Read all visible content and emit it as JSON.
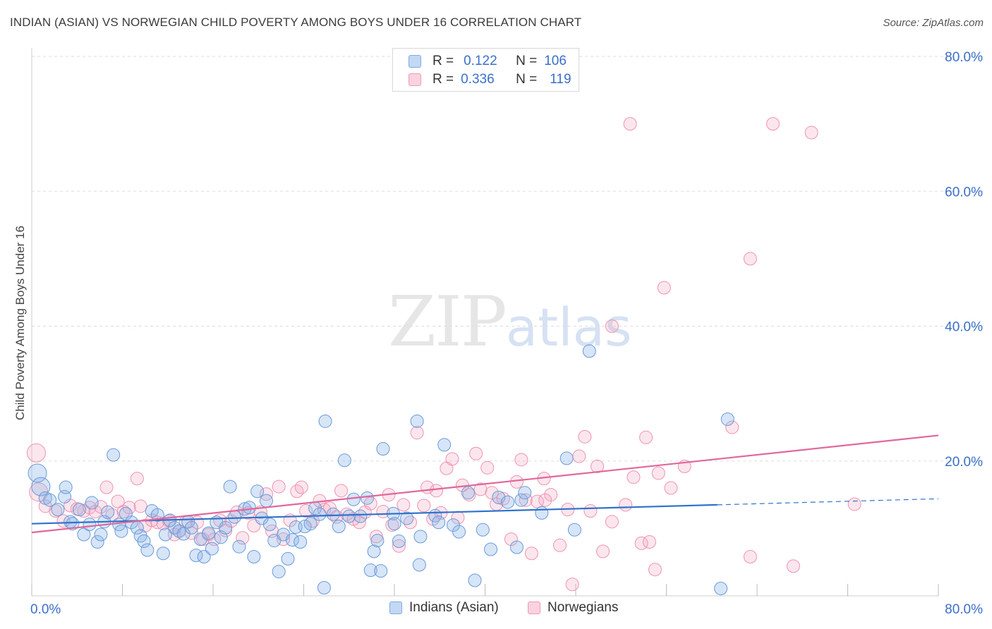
{
  "title": "INDIAN (ASIAN) VS NORWEGIAN CHILD POVERTY AMONG BOYS UNDER 16 CORRELATION CHART",
  "source": "Source: ZipAtlas.com",
  "watermark": {
    "zip": "ZIP",
    "atlas": "atlas"
  },
  "legend_top": {
    "rows": [
      {
        "r_label": "R =",
        "r_value": "0.122",
        "n_label": "N =",
        "n_value": "106",
        "color": "#a9c7ef"
      },
      {
        "r_label": "R =",
        "r_value": "0.336",
        "n_label": "N =",
        "n_value": "119",
        "color": "#f7b8cb"
      }
    ]
  },
  "legend_bottom": [
    "Indians (Asian)",
    "Norwegians"
  ],
  "colors": {
    "blue_fill": "rgba(137,180,232,0.35)",
    "blue_stroke": "#6a9ad8",
    "blue_line": "#2f72cc",
    "pink_fill": "rgba(244,165,190,0.28)",
    "pink_stroke": "#ee93b0",
    "pink_line": "#e1679a",
    "tick_label": "#3b6fc9",
    "grid": "#dddddd"
  },
  "chart_data": {
    "type": "scatter",
    "title": "INDIAN (ASIAN) VS NORWEGIAN CHILD POVERTY AMONG BOYS UNDER 16 CORRELATION CHART",
    "xlabel": "",
    "ylabel": "Child Poverty Among Boys Under 16",
    "xlim": [
      0,
      80
    ],
    "ylim": [
      0,
      80
    ],
    "x_tick_labels": [
      "0.0%",
      "80.0%"
    ],
    "y_tick_labels": [
      "20.0%",
      "40.0%",
      "60.0%",
      "80.0%"
    ],
    "y_ticks": [
      20,
      40,
      60,
      80
    ],
    "grid": true,
    "legend_position": "top-center",
    "series": [
      {
        "name": "Indians (Asian)",
        "R": 0.122,
        "N": 106,
        "trend": {
          "x_start": 0,
          "y_start": 10.7,
          "x_solid_end": 60.5,
          "y_solid_end": 13.5,
          "x_end": 80,
          "y_end": 14.4
        },
        "points": [
          [
            0.5,
            18.2
          ],
          [
            0.8,
            16.2
          ],
          [
            1.2,
            14.5
          ],
          [
            1.6,
            14.2
          ],
          [
            2.3,
            12.8
          ],
          [
            2.9,
            14.7
          ],
          [
            3.0,
            16.1
          ],
          [
            3.4,
            11.0
          ],
          [
            3.6,
            10.7
          ],
          [
            4.2,
            12.8
          ],
          [
            4.6,
            9.1
          ],
          [
            5.1,
            10.6
          ],
          [
            5.3,
            13.8
          ],
          [
            5.8,
            8.0
          ],
          [
            6.1,
            9.1
          ],
          [
            6.4,
            11.0
          ],
          [
            6.7,
            12.4
          ],
          [
            7.2,
            20.9
          ],
          [
            7.7,
            10.6
          ],
          [
            7.9,
            9.6
          ],
          [
            8.3,
            12.2
          ],
          [
            8.8,
            10.9
          ],
          [
            9.3,
            10.1
          ],
          [
            9.6,
            8.9
          ],
          [
            9.9,
            8.1
          ],
          [
            10.2,
            6.8
          ],
          [
            10.6,
            12.6
          ],
          [
            11.1,
            12.0
          ],
          [
            11.6,
            6.3
          ],
          [
            11.8,
            9.1
          ],
          [
            12.2,
            11.2
          ],
          [
            12.6,
            10.1
          ],
          [
            13.0,
            9.6
          ],
          [
            13.4,
            9.2
          ],
          [
            13.8,
            11.0
          ],
          [
            14.1,
            10.1
          ],
          [
            14.5,
            6.0
          ],
          [
            14.9,
            8.4
          ],
          [
            15.2,
            5.8
          ],
          [
            15.6,
            9.3
          ],
          [
            15.9,
            7.0
          ],
          [
            16.3,
            10.9
          ],
          [
            16.7,
            8.7
          ],
          [
            17.1,
            10.1
          ],
          [
            17.5,
            16.2
          ],
          [
            17.9,
            11.7
          ],
          [
            18.3,
            7.3
          ],
          [
            18.8,
            12.9
          ],
          [
            19.2,
            13.1
          ],
          [
            19.6,
            5.8
          ],
          [
            19.9,
            15.5
          ],
          [
            20.3,
            11.5
          ],
          [
            20.7,
            14.1
          ],
          [
            21.0,
            10.6
          ],
          [
            21.4,
            8.2
          ],
          [
            21.8,
            3.6
          ],
          [
            22.2,
            9.1
          ],
          [
            22.6,
            5.5
          ],
          [
            23.0,
            8.3
          ],
          [
            23.3,
            10.2
          ],
          [
            23.7,
            8.0
          ],
          [
            24.1,
            10.3
          ],
          [
            24.6,
            10.7
          ],
          [
            25.0,
            13.0
          ],
          [
            25.4,
            12.1
          ],
          [
            25.8,
            1.2
          ],
          [
            25.9,
            25.9
          ],
          [
            26.6,
            12.1
          ],
          [
            27.1,
            10.3
          ],
          [
            27.6,
            20.1
          ],
          [
            28.0,
            11.8
          ],
          [
            28.4,
            14.3
          ],
          [
            29.0,
            11.8
          ],
          [
            29.6,
            14.5
          ],
          [
            29.9,
            3.8
          ],
          [
            30.2,
            6.6
          ],
          [
            30.5,
            8.2
          ],
          [
            30.8,
            3.7
          ],
          [
            31.0,
            21.8
          ],
          [
            31.9,
            12.2
          ],
          [
            32.0,
            10.7
          ],
          [
            32.4,
            8.1
          ],
          [
            33.1,
            11.5
          ],
          [
            34.0,
            25.9
          ],
          [
            34.3,
            8.8
          ],
          [
            34.2,
            4.6
          ],
          [
            35.6,
            11.9
          ],
          [
            35.9,
            10.9
          ],
          [
            36.4,
            22.4
          ],
          [
            37.2,
            10.5
          ],
          [
            37.7,
            9.5
          ],
          [
            38.5,
            15.3
          ],
          [
            39.1,
            2.3
          ],
          [
            39.8,
            9.8
          ],
          [
            40.5,
            6.9
          ],
          [
            41.2,
            14.6
          ],
          [
            42.0,
            13.9
          ],
          [
            42.8,
            7.2
          ],
          [
            43.2,
            14.2
          ],
          [
            43.5,
            15.3
          ],
          [
            45.0,
            12.3
          ],
          [
            47.2,
            20.4
          ],
          [
            47.9,
            9.8
          ],
          [
            49.2,
            36.3
          ],
          [
            61.4,
            26.2
          ],
          [
            60.8,
            1.1
          ]
        ]
      },
      {
        "name": "Norwegians",
        "R": 0.336,
        "N": 119,
        "trend": {
          "x_start": 0,
          "y_start": 9.4,
          "x_end": 80,
          "y_end": 23.8
        },
        "points": [
          [
            0.4,
            21.2
          ],
          [
            0.6,
            15.4
          ],
          [
            1.2,
            13.3
          ],
          [
            2.1,
            12.6
          ],
          [
            2.8,
            11.1
          ],
          [
            3.4,
            13.4
          ],
          [
            4.0,
            12.9
          ],
          [
            4.6,
            12.6
          ],
          [
            5.1,
            13.1
          ],
          [
            5.6,
            12.5
          ],
          [
            6.1,
            13.2
          ],
          [
            6.6,
            16.1
          ],
          [
            7.1,
            12.0
          ],
          [
            7.6,
            14.0
          ],
          [
            8.1,
            12.5
          ],
          [
            8.6,
            13.1
          ],
          [
            9.3,
            17.4
          ],
          [
            9.6,
            13.3
          ],
          [
            10.0,
            10.4
          ],
          [
            10.6,
            11.2
          ],
          [
            11.1,
            10.9
          ],
          [
            11.6,
            10.7
          ],
          [
            12.1,
            11.1
          ],
          [
            12.6,
            9.1
          ],
          [
            13.0,
            9.6
          ],
          [
            13.6,
            11.0
          ],
          [
            14.1,
            9.3
          ],
          [
            14.6,
            10.9
          ],
          [
            15.1,
            8.4
          ],
          [
            15.6,
            9.1
          ],
          [
            16.1,
            8.4
          ],
          [
            16.6,
            11.2
          ],
          [
            17.1,
            9.7
          ],
          [
            17.6,
            11.1
          ],
          [
            18.1,
            12.4
          ],
          [
            18.6,
            8.6
          ],
          [
            19.1,
            12.3
          ],
          [
            19.6,
            10.4
          ],
          [
            20.2,
            12.4
          ],
          [
            20.7,
            15.1
          ],
          [
            21.2,
            9.6
          ],
          [
            21.8,
            16.2
          ],
          [
            22.2,
            8.4
          ],
          [
            22.8,
            11.2
          ],
          [
            23.4,
            15.5
          ],
          [
            23.8,
            16.1
          ],
          [
            24.2,
            12.6
          ],
          [
            24.8,
            11.1
          ],
          [
            25.4,
            14.1
          ],
          [
            25.8,
            12.8
          ],
          [
            26.3,
            13.0
          ],
          [
            26.9,
            11.7
          ],
          [
            27.3,
            15.6
          ],
          [
            27.8,
            12.1
          ],
          [
            28.4,
            11.4
          ],
          [
            28.9,
            10.9
          ],
          [
            29.4,
            12.4
          ],
          [
            29.9,
            13.7
          ],
          [
            30.4,
            8.8
          ],
          [
            31.0,
            12.5
          ],
          [
            31.5,
            15.0
          ],
          [
            31.8,
            10.5
          ],
          [
            32.4,
            7.4
          ],
          [
            32.8,
            13.5
          ],
          [
            33.4,
            10.9
          ],
          [
            34.0,
            24.2
          ],
          [
            34.6,
            13.4
          ],
          [
            34.9,
            16.1
          ],
          [
            35.4,
            11.4
          ],
          [
            35.7,
            15.6
          ],
          [
            36.1,
            12.3
          ],
          [
            36.6,
            18.9
          ],
          [
            37.1,
            20.3
          ],
          [
            37.6,
            11.6
          ],
          [
            38.0,
            16.4
          ],
          [
            38.6,
            15.0
          ],
          [
            39.2,
            21.1
          ],
          [
            39.6,
            15.8
          ],
          [
            40.2,
            19.0
          ],
          [
            40.6,
            15.3
          ],
          [
            41.0,
            13.6
          ],
          [
            41.6,
            14.4
          ],
          [
            42.3,
            8.4
          ],
          [
            42.8,
            16.9
          ],
          [
            43.2,
            20.2
          ],
          [
            43.6,
            14.2
          ],
          [
            44.1,
            6.3
          ],
          [
            44.6,
            14.0
          ],
          [
            45.2,
            17.4
          ],
          [
            45.8,
            15.0
          ],
          [
            46.6,
            7.5
          ],
          [
            47.3,
            12.8
          ],
          [
            47.7,
            1.7
          ],
          [
            48.3,
            20.7
          ],
          [
            48.8,
            23.6
          ],
          [
            49.3,
            12.6
          ],
          [
            49.9,
            19.2
          ],
          [
            50.4,
            6.6
          ],
          [
            51.2,
            11.0
          ],
          [
            52.4,
            13.5
          ],
          [
            53.1,
            17.6
          ],
          [
            53.8,
            7.8
          ],
          [
            54.2,
            23.5
          ],
          [
            54.5,
            8.0
          ],
          [
            55.0,
            3.9
          ],
          [
            55.3,
            18.2
          ],
          [
            55.8,
            45.7
          ],
          [
            56.4,
            16.0
          ],
          [
            57.6,
            19.2
          ],
          [
            61.8,
            25.0
          ],
          [
            63.4,
            50.0
          ],
          [
            63.4,
            5.8
          ],
          [
            65.4,
            70.0
          ],
          [
            67.2,
            4.4
          ],
          [
            68.8,
            68.7
          ],
          [
            72.6,
            13.6
          ],
          [
            51.2,
            40.0
          ],
          [
            52.8,
            70.0
          ],
          [
            45.3,
            14.2
          ]
        ]
      }
    ]
  }
}
